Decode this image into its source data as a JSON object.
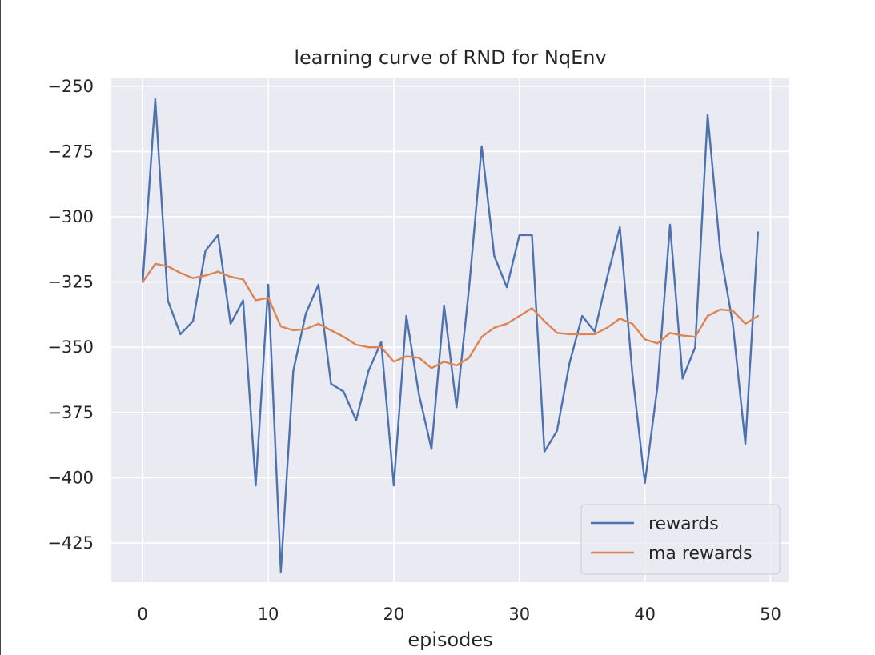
{
  "chart_data": {
    "type": "line",
    "title": "learning curve of RND for NqEnv",
    "xlabel": "episodes",
    "ylabel": "",
    "xlim": [
      -2.5,
      51.5
    ],
    "ylim": [
      -440,
      -247
    ],
    "grid": true,
    "legend_position": "lower-right",
    "x_ticks": [
      0,
      10,
      20,
      30,
      40,
      50
    ],
    "x_tick_labels": [
      "0",
      "10",
      "20",
      "30",
      "40",
      "50"
    ],
    "y_ticks": [
      -250,
      -275,
      -300,
      -325,
      -350,
      -375,
      -400,
      -425
    ],
    "y_tick_labels": [
      "−250",
      "−275",
      "−300",
      "−325",
      "−350",
      "−375",
      "−400",
      "−425"
    ],
    "x": [
      0,
      1,
      2,
      3,
      4,
      5,
      6,
      7,
      8,
      9,
      10,
      11,
      12,
      13,
      14,
      15,
      16,
      17,
      18,
      19,
      20,
      21,
      22,
      23,
      24,
      25,
      26,
      27,
      28,
      29,
      30,
      31,
      32,
      33,
      34,
      35,
      36,
      37,
      38,
      39,
      40,
      41,
      42,
      43,
      44,
      45,
      46,
      47,
      48,
      49
    ],
    "series": [
      {
        "name": "rewards",
        "color": "#4c72b0",
        "values": [
          -325,
          -255,
          -332,
          -345,
          -340,
          -313,
          -307,
          -341,
          -332,
          -403,
          -326,
          -436,
          -359,
          -337,
          -326,
          -364,
          -367,
          -378,
          -359,
          -348,
          -403,
          -338,
          -368,
          -389,
          -334,
          -373,
          -327,
          -273,
          -315,
          -327,
          -307,
          -307,
          -390,
          -382,
          -356,
          -338,
          -344,
          -323,
          -304,
          -360,
          -402,
          -365,
          -303,
          -362,
          -350,
          -261,
          -313,
          -341,
          -387,
          -306
        ]
      },
      {
        "name": "ma rewards",
        "color": "#dd8452",
        "values": [
          -325,
          -318,
          -319,
          -321.5,
          -323.5,
          -322.5,
          -321,
          -323,
          -324,
          -332,
          -331,
          -342,
          -343.5,
          -343,
          -341,
          -343.5,
          -346,
          -349,
          -350,
          -350,
          -355.5,
          -353.5,
          -354,
          -358,
          -355.5,
          -357,
          -354,
          -346,
          -342.5,
          -341,
          -338,
          -335,
          -340,
          -344.5,
          -345,
          -345,
          -345,
          -342.5,
          -339,
          -341,
          -347,
          -348.5,
          -344.5,
          -345.5,
          -346,
          -338,
          -335.5,
          -336,
          -341,
          -338
        ]
      }
    ]
  }
}
